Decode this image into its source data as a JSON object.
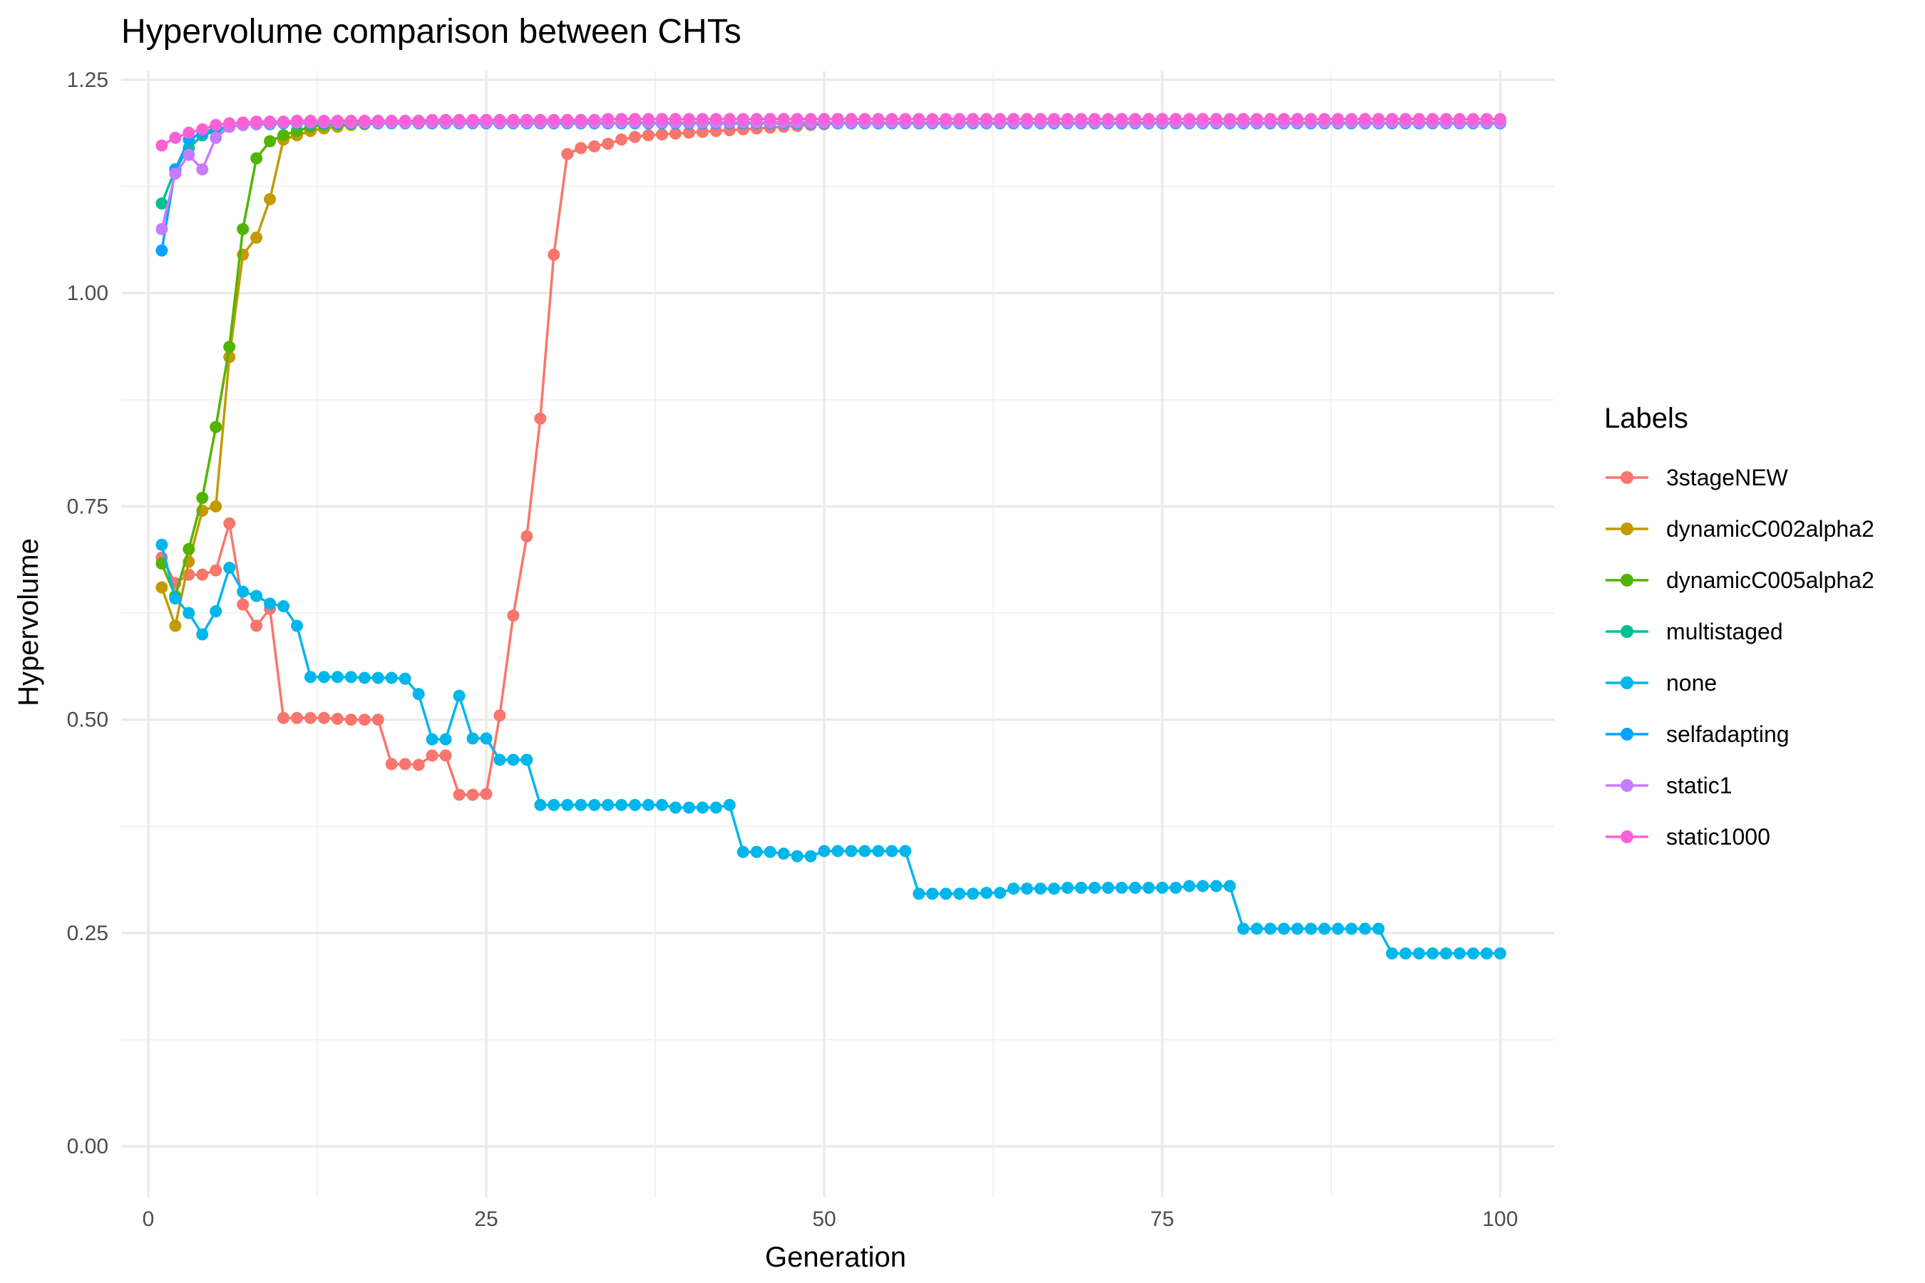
{
  "chart_data": {
    "type": "line",
    "title": "Hypervolume comparison between CHTs",
    "xlabel": "Generation",
    "ylabel": "Hypervolume",
    "xlim": [
      -2,
      104
    ],
    "ylim": [
      -0.06,
      1.26
    ],
    "x_ticks": [
      0,
      25,
      50,
      75,
      100
    ],
    "x_tick_labels": [
      "0",
      "25",
      "50",
      "75",
      "100"
    ],
    "y_ticks": [
      0,
      0.25,
      0.5,
      0.75,
      1.0,
      1.25
    ],
    "y_tick_labels": [
      "0.00",
      "0.25",
      "0.50",
      "0.75",
      "1.00",
      "1.25"
    ],
    "grid": true,
    "markers": true,
    "legend": {
      "title": "Labels",
      "position": "right"
    },
    "x": [
      1,
      2,
      3,
      4,
      5,
      6,
      7,
      8,
      9,
      10,
      11,
      12,
      13,
      14,
      15,
      16,
      17,
      18,
      19,
      20,
      21,
      22,
      23,
      24,
      25,
      26,
      27,
      28,
      29,
      30,
      31,
      32,
      33,
      34,
      35,
      36,
      37,
      38,
      39,
      40,
      41,
      42,
      43,
      44,
      45,
      46,
      47,
      48,
      49,
      50,
      51,
      52,
      53,
      54,
      55,
      56,
      57,
      58,
      59,
      60,
      61,
      62,
      63,
      64,
      65,
      66,
      67,
      68,
      69,
      70,
      71,
      72,
      73,
      74,
      75,
      76,
      77,
      78,
      79,
      80,
      81,
      82,
      83,
      84,
      85,
      86,
      87,
      88,
      89,
      90,
      91,
      92,
      93,
      94,
      95,
      96,
      97,
      98,
      99,
      100
    ],
    "series": [
      {
        "name": "3stageNEW",
        "color": "#F8766D",
        "values": [
          0.69,
          0.66,
          0.67,
          0.67,
          0.675,
          0.73,
          0.635,
          0.61,
          0.63,
          0.502,
          0.502,
          0.502,
          0.502,
          0.501,
          0.5,
          0.5,
          0.5,
          0.448,
          0.448,
          0.447,
          0.458,
          0.458,
          0.412,
          0.412,
          0.413,
          0.505,
          0.622,
          0.715,
          0.853,
          1.045,
          1.163,
          1.17,
          1.172,
          1.175,
          1.18,
          1.183,
          1.185,
          1.186,
          1.187,
          1.188,
          1.189,
          1.19,
          1.191,
          1.192,
          1.193,
          1.194,
          1.195,
          1.196,
          1.197,
          1.198,
          1.199,
          1.2,
          1.2,
          1.2,
          1.2,
          1.2,
          1.2,
          1.2,
          1.2,
          1.2,
          1.2,
          1.2,
          1.2,
          1.2,
          1.2,
          1.2,
          1.2,
          1.2,
          1.2,
          1.2,
          1.2,
          1.2,
          1.2,
          1.2,
          1.2,
          1.2,
          1.2,
          1.2,
          1.2,
          1.2,
          1.2,
          1.2,
          1.2,
          1.2,
          1.2,
          1.2,
          1.2,
          1.2,
          1.2,
          1.2,
          1.2,
          1.2,
          1.2,
          1.2,
          1.2,
          1.2,
          1.2,
          1.2,
          1.2,
          1.2
        ]
      },
      {
        "name": "dynamicC002alpha2",
        "color": "#C49A00",
        "values": [
          0.655,
          0.61,
          0.685,
          0.745,
          0.75,
          0.925,
          1.045,
          1.065,
          1.11,
          1.18,
          1.185,
          1.19,
          1.193,
          1.195,
          1.197,
          1.198,
          1.199,
          1.2,
          1.2,
          1.2,
          1.2,
          1.2,
          1.2,
          1.2,
          1.2,
          1.2,
          1.2,
          1.2,
          1.2,
          1.2,
          1.2,
          1.2,
          1.2,
          1.2,
          1.2,
          1.2,
          1.2,
          1.2,
          1.2,
          1.2,
          1.2,
          1.2,
          1.2,
          1.2,
          1.2,
          1.2,
          1.2,
          1.2,
          1.2,
          1.2,
          1.2,
          1.2,
          1.2,
          1.2,
          1.2,
          1.2,
          1.2,
          1.2,
          1.2,
          1.2,
          1.2,
          1.2,
          1.2,
          1.2,
          1.2,
          1.2,
          1.2,
          1.2,
          1.2,
          1.2,
          1.2,
          1.2,
          1.2,
          1.2,
          1.2,
          1.2,
          1.2,
          1.2,
          1.2,
          1.2,
          1.2,
          1.2,
          1.2,
          1.2,
          1.2,
          1.2,
          1.2,
          1.2,
          1.2,
          1.2,
          1.2,
          1.2,
          1.2,
          1.2,
          1.2,
          1.2,
          1.2,
          1.2,
          1.2,
          1.2
        ]
      },
      {
        "name": "dynamicC005alpha2",
        "color": "#53B400",
        "values": [
          0.683,
          0.645,
          0.7,
          0.76,
          0.843,
          0.937,
          1.075,
          1.158,
          1.178,
          1.185,
          1.19,
          1.195,
          1.197,
          1.198,
          1.199,
          1.2,
          1.2,
          1.2,
          1.2,
          1.2,
          1.2,
          1.2,
          1.2,
          1.2,
          1.2,
          1.2,
          1.2,
          1.2,
          1.2,
          1.2,
          1.2,
          1.2,
          1.2,
          1.2,
          1.2,
          1.2,
          1.2,
          1.2,
          1.2,
          1.2,
          1.2,
          1.2,
          1.2,
          1.2,
          1.2,
          1.2,
          1.2,
          1.2,
          1.2,
          1.2,
          1.2,
          1.2,
          1.2,
          1.2,
          1.2,
          1.2,
          1.2,
          1.2,
          1.2,
          1.2,
          1.2,
          1.2,
          1.2,
          1.2,
          1.2,
          1.2,
          1.2,
          1.2,
          1.2,
          1.2,
          1.2,
          1.2,
          1.2,
          1.2,
          1.2,
          1.2,
          1.2,
          1.2,
          1.2,
          1.2,
          1.2,
          1.2,
          1.2,
          1.2,
          1.2,
          1.2,
          1.2,
          1.2,
          1.2,
          1.2,
          1.2,
          1.2,
          1.2,
          1.2,
          1.2,
          1.2,
          1.2,
          1.2,
          1.2,
          1.2
        ]
      },
      {
        "name": "multistaged",
        "color": "#00C094",
        "values": [
          1.105,
          1.145,
          1.17,
          1.185,
          1.19,
          1.195,
          1.197,
          1.198,
          1.199,
          1.2,
          1.2,
          1.2,
          1.2,
          1.2,
          1.2,
          1.2,
          1.2,
          1.2,
          1.2,
          1.2,
          1.2,
          1.2,
          1.2,
          1.2,
          1.2,
          1.2,
          1.2,
          1.2,
          1.2,
          1.2,
          1.2,
          1.2,
          1.2,
          1.2,
          1.2,
          1.2,
          1.2,
          1.2,
          1.2,
          1.2,
          1.2,
          1.2,
          1.2,
          1.2,
          1.2,
          1.2,
          1.2,
          1.2,
          1.2,
          1.2,
          1.2,
          1.2,
          1.2,
          1.2,
          1.2,
          1.2,
          1.2,
          1.2,
          1.2,
          1.2,
          1.2,
          1.2,
          1.2,
          1.2,
          1.2,
          1.2,
          1.2,
          1.2,
          1.2,
          1.2,
          1.2,
          1.2,
          1.2,
          1.2,
          1.2,
          1.2,
          1.2,
          1.2,
          1.2,
          1.2,
          1.2,
          1.2,
          1.2,
          1.2,
          1.2,
          1.2,
          1.2,
          1.2,
          1.2,
          1.2,
          1.2,
          1.2,
          1.2,
          1.2,
          1.2,
          1.2,
          1.2,
          1.2,
          1.2,
          1.2
        ]
      },
      {
        "name": "none",
        "color": "#00B6EB",
        "values": [
          0.705,
          0.642,
          0.625,
          0.6,
          0.627,
          0.678,
          0.65,
          0.645,
          0.636,
          0.633,
          0.61,
          0.55,
          0.55,
          0.55,
          0.55,
          0.549,
          0.549,
          0.549,
          0.548,
          0.53,
          0.477,
          0.477,
          0.528,
          0.478,
          0.478,
          0.453,
          0.453,
          0.453,
          0.4,
          0.4,
          0.4,
          0.4,
          0.4,
          0.4,
          0.4,
          0.4,
          0.4,
          0.4,
          0.397,
          0.397,
          0.397,
          0.397,
          0.4,
          0.345,
          0.345,
          0.345,
          0.343,
          0.34,
          0.34,
          0.346,
          0.346,
          0.346,
          0.346,
          0.346,
          0.346,
          0.346,
          0.296,
          0.296,
          0.296,
          0.296,
          0.296,
          0.297,
          0.297,
          0.302,
          0.302,
          0.302,
          0.302,
          0.303,
          0.303,
          0.303,
          0.303,
          0.303,
          0.303,
          0.303,
          0.303,
          0.303,
          0.305,
          0.305,
          0.305,
          0.305,
          0.255,
          0.255,
          0.255,
          0.255,
          0.255,
          0.255,
          0.255,
          0.255,
          0.255,
          0.255,
          0.255,
          0.226,
          0.226,
          0.226,
          0.226,
          0.226,
          0.226,
          0.226,
          0.226,
          0.226
        ]
      },
      {
        "name": "selfadapting",
        "color": "#06A4FF",
        "values": [
          1.05,
          1.145,
          1.18,
          1.188,
          1.193,
          1.195,
          1.197,
          1.198,
          1.198,
          1.199,
          1.199,
          1.199,
          1.199,
          1.199,
          1.199,
          1.199,
          1.199,
          1.199,
          1.199,
          1.199,
          1.199,
          1.199,
          1.199,
          1.199,
          1.199,
          1.199,
          1.199,
          1.199,
          1.199,
          1.199,
          1.199,
          1.199,
          1.199,
          1.199,
          1.199,
          1.199,
          1.199,
          1.199,
          1.199,
          1.199,
          1.199,
          1.199,
          1.199,
          1.199,
          1.199,
          1.199,
          1.199,
          1.199,
          1.199,
          1.199,
          1.199,
          1.199,
          1.199,
          1.199,
          1.199,
          1.199,
          1.199,
          1.199,
          1.199,
          1.199,
          1.199,
          1.199,
          1.199,
          1.199,
          1.199,
          1.199,
          1.199,
          1.199,
          1.199,
          1.199,
          1.199,
          1.199,
          1.199,
          1.199,
          1.199,
          1.199,
          1.199,
          1.199,
          1.199,
          1.199,
          1.199,
          1.199,
          1.199,
          1.199,
          1.199,
          1.199,
          1.199,
          1.199,
          1.199,
          1.199,
          1.199,
          1.199,
          1.199,
          1.199,
          1.199,
          1.199,
          1.199,
          1.199,
          1.199,
          1.199
        ]
      },
      {
        "name": "static1",
        "color": "#C77CFF",
        "values": [
          1.075,
          1.14,
          1.162,
          1.145,
          1.182,
          1.195,
          1.197,
          1.198,
          1.199,
          1.2,
          1.2,
          1.2,
          1.2,
          1.2,
          1.2,
          1.2,
          1.2,
          1.2,
          1.2,
          1.2,
          1.2,
          1.2,
          1.2,
          1.2,
          1.2,
          1.2,
          1.2,
          1.2,
          1.2,
          1.2,
          1.2,
          1.2,
          1.2,
          1.2,
          1.2,
          1.2,
          1.2,
          1.2,
          1.2,
          1.2,
          1.2,
          1.2,
          1.2,
          1.2,
          1.2,
          1.2,
          1.2,
          1.2,
          1.2,
          1.2,
          1.2,
          1.2,
          1.2,
          1.2,
          1.2,
          1.2,
          1.2,
          1.2,
          1.2,
          1.2,
          1.2,
          1.2,
          1.2,
          1.2,
          1.2,
          1.2,
          1.2,
          1.2,
          1.2,
          1.2,
          1.2,
          1.2,
          1.2,
          1.2,
          1.2,
          1.2,
          1.2,
          1.2,
          1.2,
          1.2,
          1.2,
          1.2,
          1.2,
          1.2,
          1.2,
          1.2,
          1.2,
          1.2,
          1.2,
          1.2,
          1.2,
          1.2,
          1.2,
          1.2,
          1.2,
          1.2,
          1.2,
          1.2,
          1.2,
          1.2
        ]
      },
      {
        "name": "static1000",
        "color": "#FB61D7",
        "values": [
          1.173,
          1.182,
          1.188,
          1.192,
          1.197,
          1.199,
          1.2,
          1.201,
          1.201,
          1.201,
          1.202,
          1.202,
          1.202,
          1.202,
          1.202,
          1.202,
          1.202,
          1.202,
          1.202,
          1.202,
          1.203,
          1.203,
          1.203,
          1.203,
          1.203,
          1.203,
          1.203,
          1.203,
          1.203,
          1.203,
          1.203,
          1.203,
          1.203,
          1.204,
          1.204,
          1.204,
          1.204,
          1.204,
          1.204,
          1.204,
          1.204,
          1.204,
          1.204,
          1.204,
          1.204,
          1.204,
          1.204,
          1.204,
          1.204,
          1.204,
          1.204,
          1.204,
          1.204,
          1.204,
          1.204,
          1.204,
          1.204,
          1.204,
          1.204,
          1.204,
          1.204,
          1.204,
          1.204,
          1.204,
          1.204,
          1.204,
          1.204,
          1.204,
          1.204,
          1.204,
          1.204,
          1.204,
          1.204,
          1.204,
          1.204,
          1.204,
          1.204,
          1.204,
          1.204,
          1.204,
          1.204,
          1.204,
          1.204,
          1.204,
          1.204,
          1.204,
          1.204,
          1.204,
          1.204,
          1.204,
          1.204,
          1.204,
          1.204,
          1.204,
          1.204,
          1.204,
          1.204,
          1.204,
          1.204,
          1.204
        ]
      }
    ]
  }
}
